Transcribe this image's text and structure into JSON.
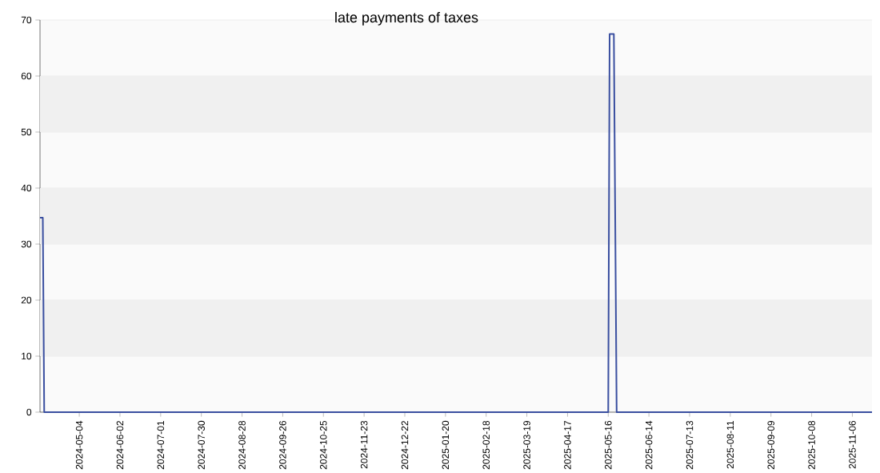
{
  "chart_data": {
    "type": "line",
    "title": "late payments of taxes",
    "x": [
      "2024-04-06",
      "2024-04-08",
      "2024-04-09",
      "2025-05-16",
      "2025-05-17",
      "2025-05-20",
      "2025-05-22",
      "2025-11-20"
    ],
    "series": [
      {
        "color": "#3a4fa0",
        "values": [
          34.7,
          34.7,
          0,
          0,
          67.5,
          67.5,
          0,
          0
        ]
      }
    ],
    "xlim": [
      "2024-04-06",
      "2025-11-20"
    ],
    "xticks": [
      "2024-05-04",
      "2024-06-02",
      "2024-07-01",
      "2024-07-30",
      "2024-08-28",
      "2024-09-26",
      "2024-10-25",
      "2024-11-23",
      "2024-12-22",
      "2025-01-20",
      "2025-02-18",
      "2025-03-19",
      "2025-04-17",
      "2025-05-16",
      "2025-06-14",
      "2025-07-13",
      "2025-08-11",
      "2025-09-09",
      "2025-10-08",
      "2025-11-06"
    ],
    "ylim": [
      0,
      70
    ],
    "yticks": [
      0,
      10,
      20,
      30,
      40,
      50,
      60,
      70
    ],
    "grid": "y",
    "marker": "none",
    "line_style": "solid"
  }
}
